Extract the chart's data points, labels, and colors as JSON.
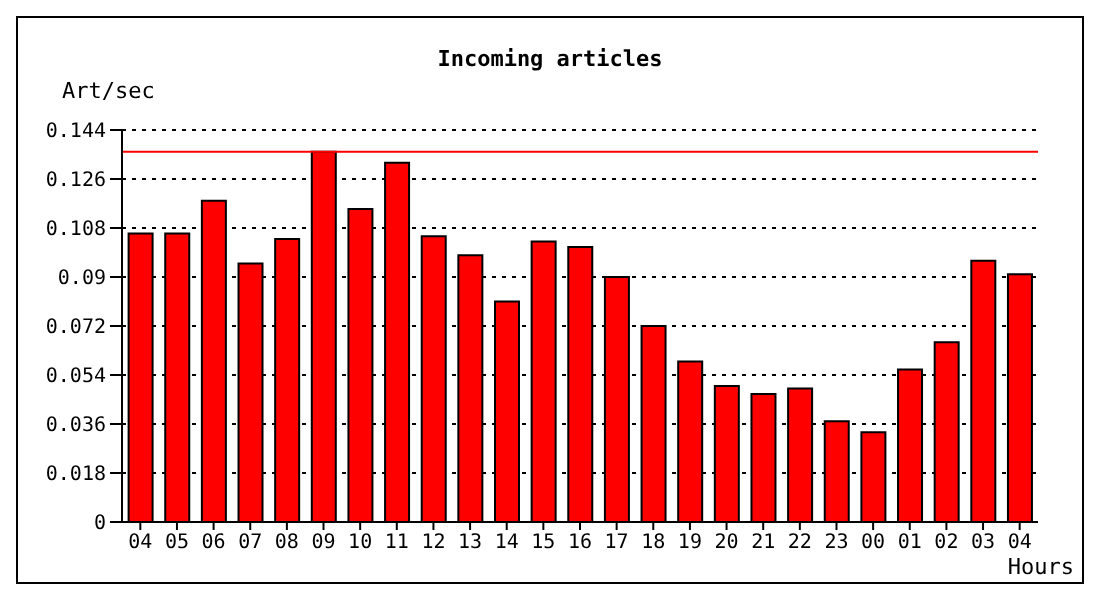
{
  "chart_data": {
    "type": "bar",
    "title": "Incoming articles",
    "ylabel": "Art/sec",
    "xlabel": "Hours",
    "categories": [
      "04",
      "05",
      "06",
      "07",
      "08",
      "09",
      "10",
      "11",
      "12",
      "13",
      "14",
      "15",
      "16",
      "17",
      "18",
      "19",
      "20",
      "21",
      "22",
      "23",
      "00",
      "01",
      "02",
      "03",
      "04"
    ],
    "values": [
      0.106,
      0.106,
      0.118,
      0.095,
      0.104,
      0.136,
      0.115,
      0.132,
      0.105,
      0.098,
      0.081,
      0.103,
      0.101,
      0.09,
      0.072,
      0.059,
      0.05,
      0.047,
      0.049,
      0.037,
      0.033,
      0.056,
      0.066,
      0.096,
      0.091
    ],
    "color": "#ff0000",
    "ylim": [
      0,
      0.144
    ],
    "yticks": [
      0,
      0.018,
      0.036,
      0.054,
      0.072,
      0.09,
      0.108,
      0.126,
      0.144
    ],
    "grid": "y",
    "ref_lines": [
      {
        "axis": "y",
        "value": 0.136,
        "color": "#ff0000"
      }
    ]
  }
}
